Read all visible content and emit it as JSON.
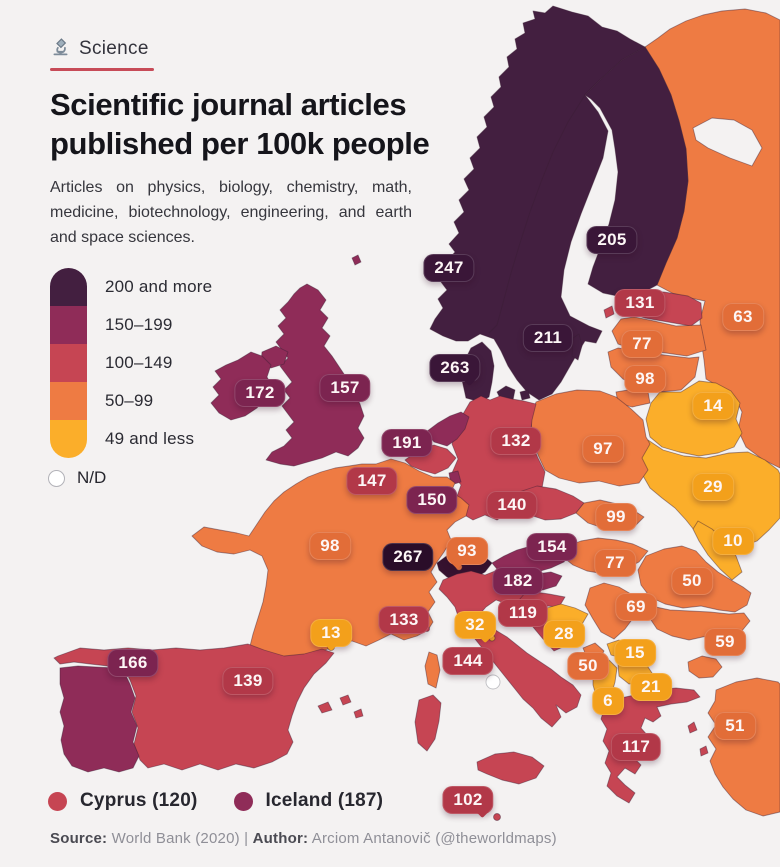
{
  "page": {
    "background": "#f4f2f2"
  },
  "header": {
    "category_label": "Science",
    "accent_color": "#c74b58",
    "title_line1": "Scientific journal articles",
    "title_line2": "published per 100k people",
    "subtitle": "Articles on physics, biology, chemistry, math, medicine, biotechnology, engineering, and earth and space sciences."
  },
  "legend": {
    "no_data_label": "N/D",
    "no_data_fill": "#ffffff"
  },
  "chart_data": {
    "type": "choropleth_map",
    "region": "Europe",
    "title": "Scientific journal articles published per 100k people",
    "unit": "articles per 100k people",
    "year": "2020",
    "bins": [
      {
        "label": "200 and more",
        "fill": "#431f40",
        "pill": "#3a1638"
      },
      {
        "label": "150–199",
        "fill": "#8f2c58",
        "pill": "#7c2450"
      },
      {
        "label": "100–149",
        "fill": "#c64553",
        "pill": "#b23848"
      },
      {
        "label": "50–99",
        "fill": "#ee7b43",
        "pill": "#e26d38"
      },
      {
        "label": "49 and less",
        "fill": "#fbae2a",
        "pill": "#f3a01b"
      }
    ],
    "countries": [
      {
        "name": "Norway",
        "value": 247,
        "bin": 0
      },
      {
        "name": "Sweden",
        "value": 211,
        "bin": 0
      },
      {
        "name": "Finland",
        "value": 205,
        "bin": 0
      },
      {
        "name": "Denmark",
        "value": 263,
        "bin": 0
      },
      {
        "name": "Switzerland",
        "value": 267,
        "bin": 0,
        "fill": "#36122f",
        "pill": "#2a0d29"
      },
      {
        "name": "Iceland",
        "value": 187,
        "bin": 1
      },
      {
        "name": "Netherlands",
        "value": 191,
        "bin": 1
      },
      {
        "name": "United Kingdom",
        "value": 157,
        "bin": 1
      },
      {
        "name": "Ireland",
        "value": 172,
        "bin": 1
      },
      {
        "name": "Luxembourg",
        "value": 150,
        "bin": 1
      },
      {
        "name": "Austria",
        "value": 154,
        "bin": 1
      },
      {
        "name": "Slovenia",
        "value": 182,
        "bin": 1
      },
      {
        "name": "Portugal",
        "value": 166,
        "bin": 1
      },
      {
        "name": "Estonia",
        "value": 131,
        "bin": 2
      },
      {
        "name": "Germany",
        "value": 132,
        "bin": 2
      },
      {
        "name": "Belgium",
        "value": 147,
        "bin": 2
      },
      {
        "name": "Czechia",
        "value": 140,
        "bin": 2
      },
      {
        "name": "Croatia",
        "value": 119,
        "bin": 2
      },
      {
        "name": "Italy",
        "value": 144,
        "bin": 2
      },
      {
        "name": "Monaco",
        "value": 133,
        "bin": 2
      },
      {
        "name": "Spain",
        "value": 139,
        "bin": 2
      },
      {
        "name": "Greece",
        "value": 117,
        "bin": 2
      },
      {
        "name": "Malta",
        "value": 102,
        "bin": 2
      },
      {
        "name": "Cyprus",
        "value": 120,
        "bin": 2
      },
      {
        "name": "Latvia",
        "value": 77,
        "bin": 3
      },
      {
        "name": "Lithuania",
        "value": 98,
        "bin": 3
      },
      {
        "name": "Russia",
        "value": 63,
        "bin": 3
      },
      {
        "name": "Poland",
        "value": 97,
        "bin": 3
      },
      {
        "name": "Slovakia",
        "value": 99,
        "bin": 3
      },
      {
        "name": "Hungary",
        "value": 77,
        "bin": 3
      },
      {
        "name": "France",
        "value": 98,
        "bin": 3
      },
      {
        "name": "Liechtenstein",
        "value": 93,
        "bin": 3
      },
      {
        "name": "Serbia",
        "value": 69,
        "bin": 3
      },
      {
        "name": "Montenegro",
        "value": 50,
        "bin": 3
      },
      {
        "name": "Romania",
        "value": 50,
        "bin": 3
      },
      {
        "name": "Bulgaria",
        "value": 59,
        "bin": 3
      },
      {
        "name": "Turkey",
        "value": 51,
        "bin": 3
      },
      {
        "name": "Belarus",
        "value": 14,
        "bin": 4
      },
      {
        "name": "Ukraine",
        "value": 29,
        "bin": 4
      },
      {
        "name": "Moldova",
        "value": 10,
        "bin": 4
      },
      {
        "name": "Bosnia and Herzegovina",
        "value": 28,
        "bin": 4
      },
      {
        "name": "Kosovo",
        "value": 15,
        "bin": 4
      },
      {
        "name": "North Macedonia",
        "value": 21,
        "bin": 4
      },
      {
        "name": "Albania",
        "value": 6,
        "bin": 4
      },
      {
        "name": "San Marino",
        "value": 32,
        "bin": 4
      },
      {
        "name": "Andorra",
        "value": 13,
        "bin": 4
      },
      {
        "name": "Vatican City",
        "value": null,
        "bin": "nd"
      }
    ]
  },
  "notes": [
    {
      "name": "Cyprus",
      "value": 120,
      "bin": 2
    },
    {
      "name": "Iceland",
      "value": 187,
      "bin": 1
    }
  ],
  "footer": {
    "source_label": "Source:",
    "source_text": " World Bank (2020) ",
    "divider": "| ",
    "author_label": "Author:",
    "author_text": " Arciom Antanovič (@theworldmaps)"
  }
}
